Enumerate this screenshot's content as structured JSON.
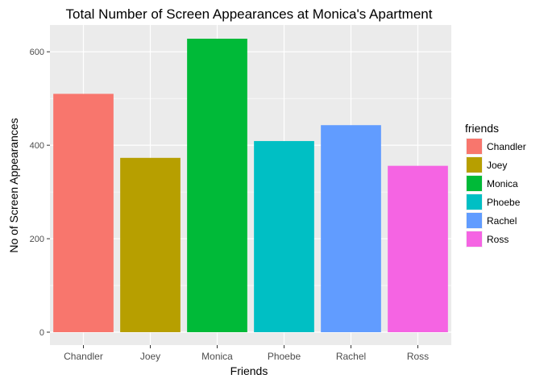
{
  "chart_data": {
    "type": "bar",
    "title": "Total Number of Screen Appearances at Monica's Apartment",
    "xlabel": "Friends",
    "ylabel": "No of Screen Appearances",
    "categories": [
      "Chandler",
      "Joey",
      "Monica",
      "Phoebe",
      "Rachel",
      "Ross"
    ],
    "values": [
      510,
      373,
      628,
      409,
      443,
      356
    ],
    "colors": [
      "#F8766D",
      "#B79F00",
      "#00BA38",
      "#00BFC4",
      "#619CFF",
      "#F564E3"
    ],
    "ylim": [
      0,
      660
    ],
    "yticks": [
      0,
      200,
      400,
      600
    ],
    "grid": true,
    "legend": {
      "title": "friends",
      "placement": "right",
      "entries": [
        "Chandler",
        "Joey",
        "Monica",
        "Phoebe",
        "Rachel",
        "Ross"
      ]
    },
    "panel_background": "#EBEBEB",
    "grid_color": "#FFFFFF"
  }
}
